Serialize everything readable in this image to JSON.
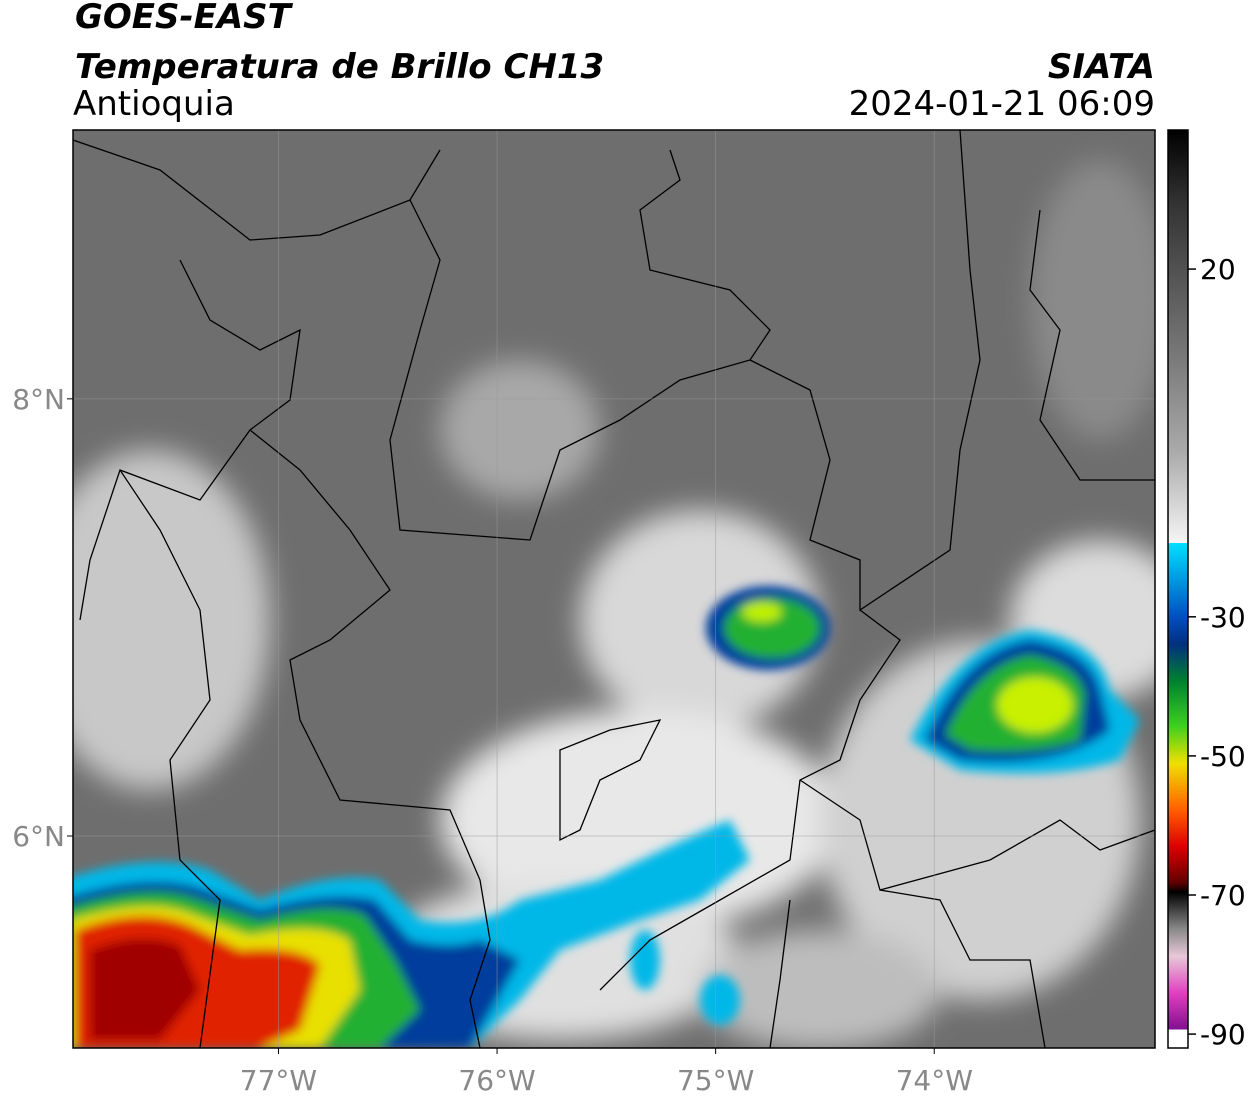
{
  "header": {
    "title": "GOES-EAST",
    "subtitle": "Temperatura de Brillo CH13",
    "source": "SIATA",
    "region": "Antioquia",
    "datetime": "2024-01-21 06:09"
  },
  "map": {
    "xlim": [
      -77.94,
      -72.99
    ],
    "ylim": [
      5.03,
      9.23
    ],
    "xticks": [
      {
        "value": -77,
        "label": "77°W"
      },
      {
        "value": -76,
        "label": "76°W"
      },
      {
        "value": -75,
        "label": "75°W"
      },
      {
        "value": -74,
        "label": "74°W"
      }
    ],
    "yticks": [
      {
        "value": 6,
        "label": "6°N"
      },
      {
        "value": 8,
        "label": "8°N"
      }
    ],
    "grid": true
  },
  "colorbar": {
    "lim": [
      -92,
      40
    ],
    "ticks": [
      20,
      -30,
      -50,
      -70,
      -90
    ]
  }
}
